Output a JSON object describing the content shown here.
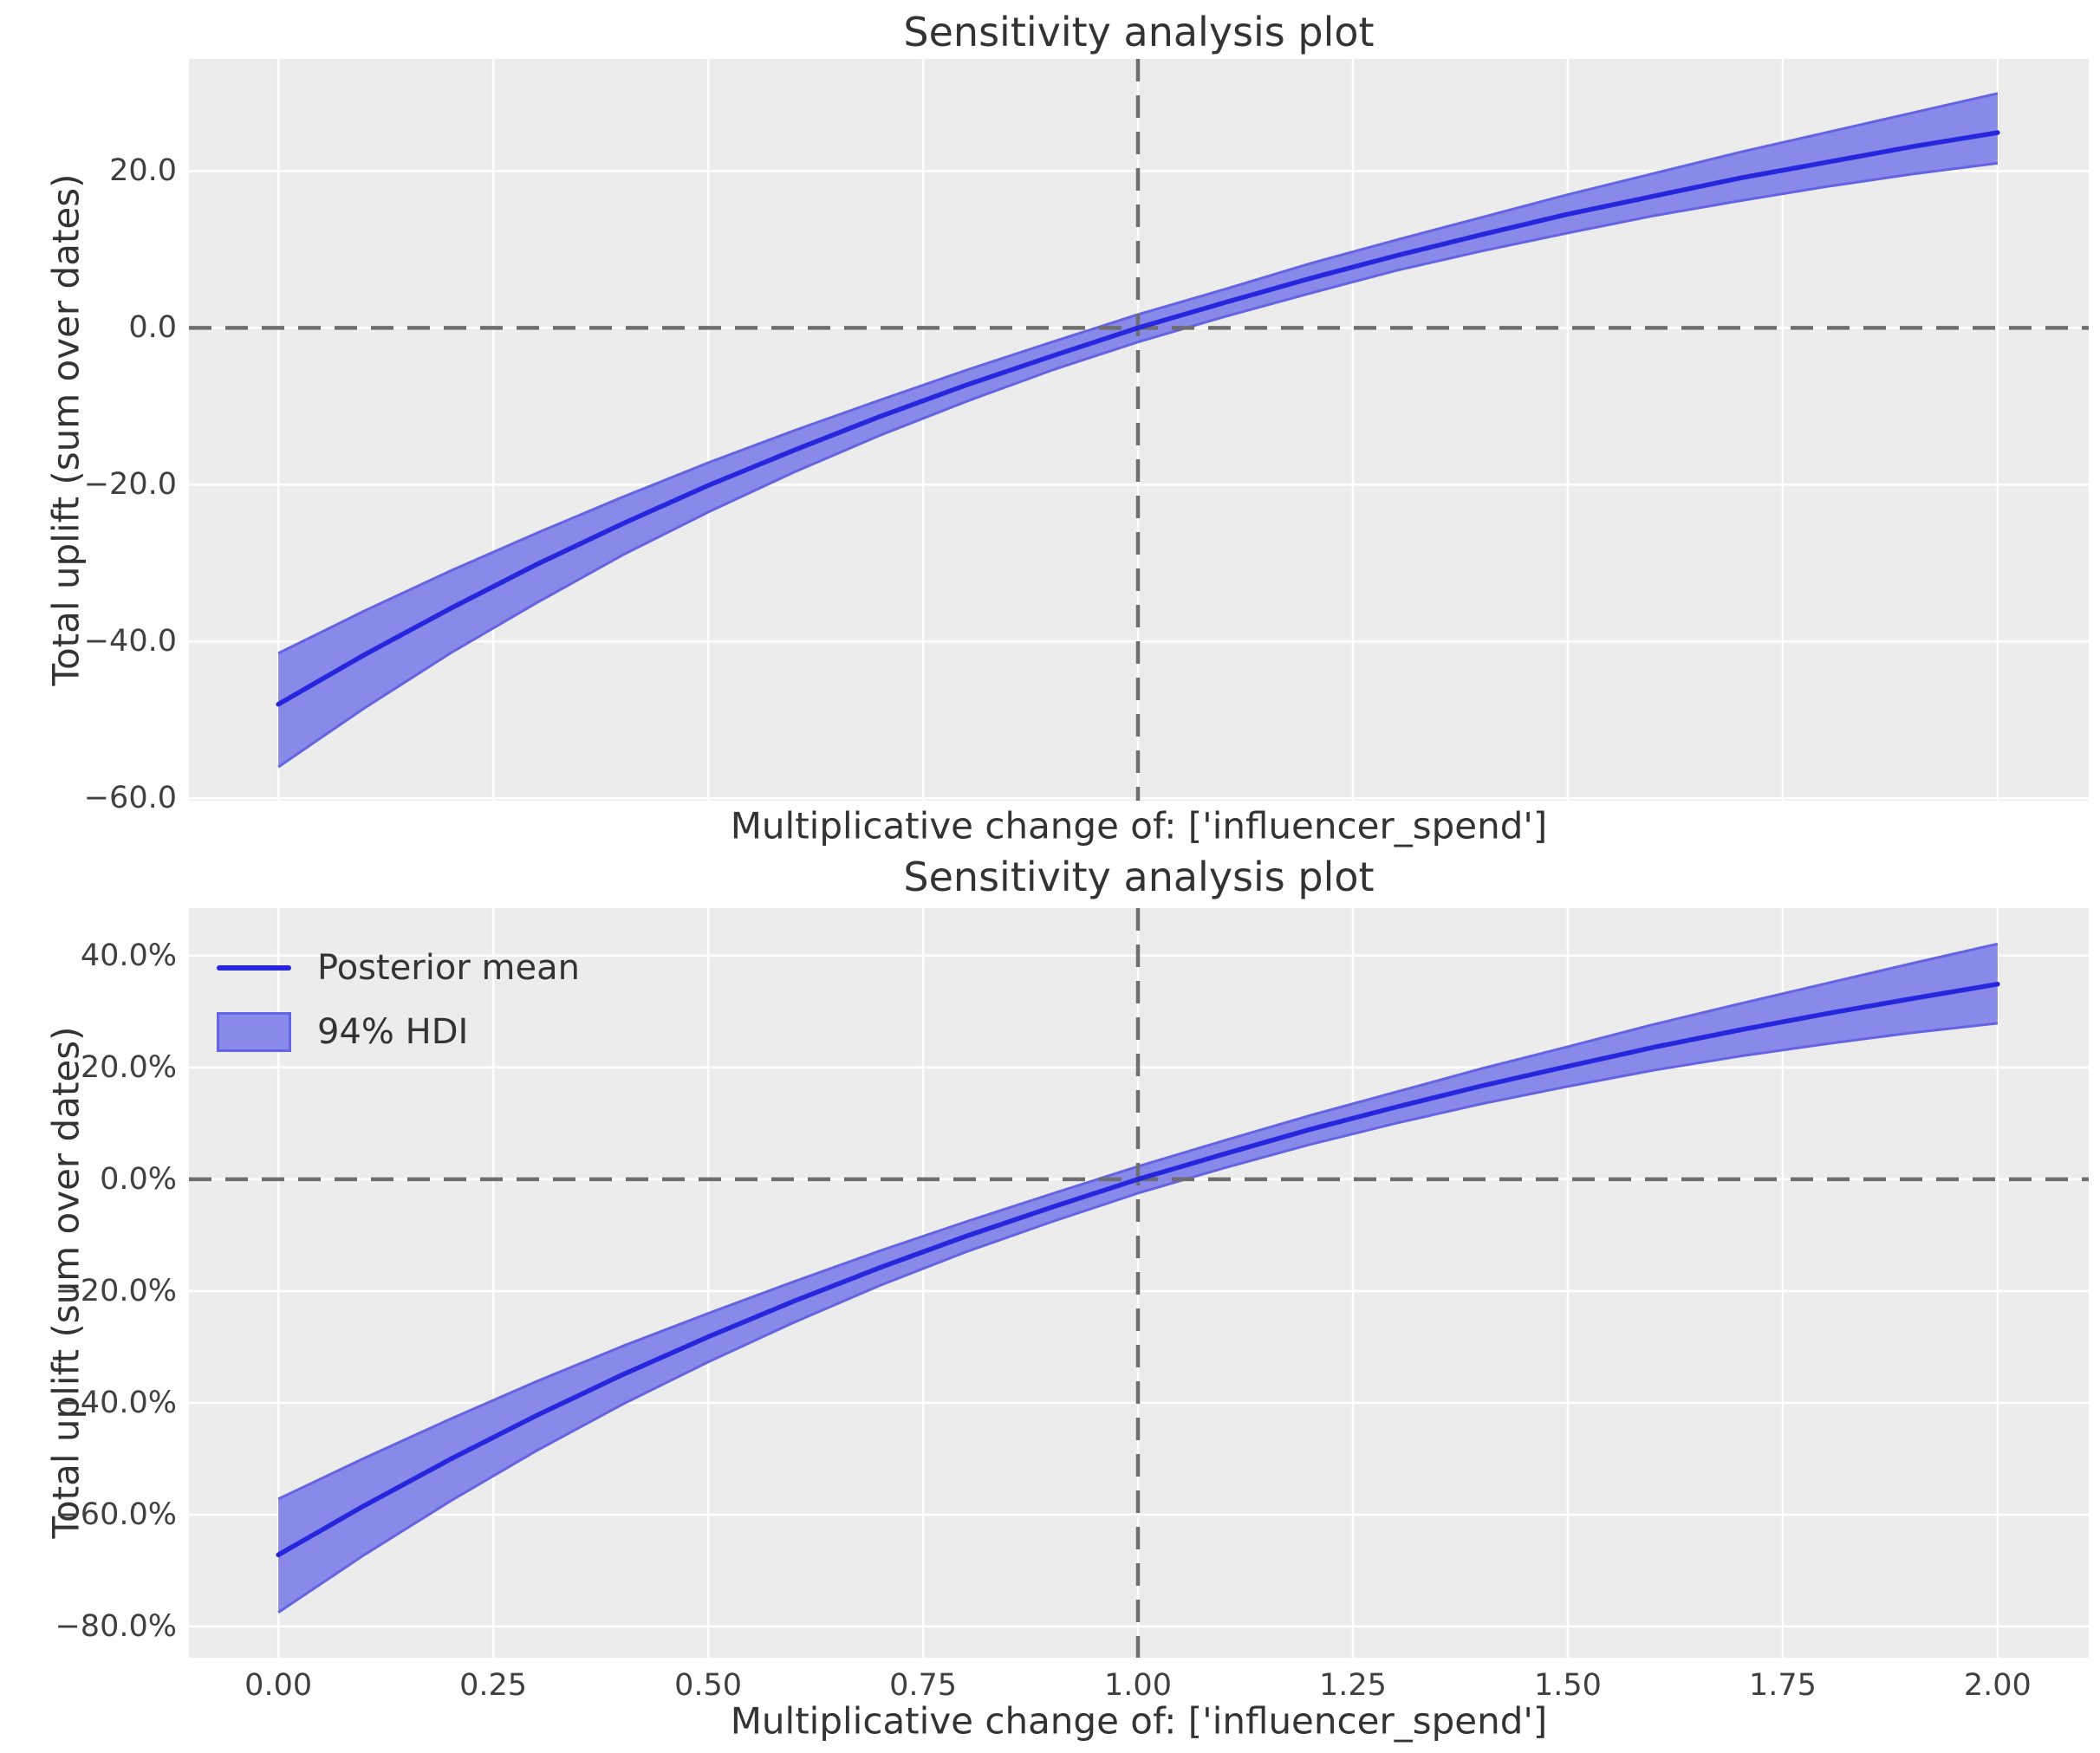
{
  "figure": {
    "background": "#ffffff",
    "axes_background": "#ececec",
    "grid_color": "#ffffff",
    "crosshair_color": "#6e6e6e",
    "line_color": "#2626dd",
    "band_fill": "#8989ea",
    "band_edge": "#6464e2",
    "text_color": "#333333",
    "tick_color": "#404040"
  },
  "chart_data": [
    {
      "type": "line",
      "title": "Sensitivity analysis plot",
      "xlabel": "Multiplicative change of: ['influencer_spend']",
      "ylabel": "Total uplift (sum over dates)",
      "grid": true,
      "legend": null,
      "xlim": [
        -0.104,
        2.106
      ],
      "ylim": [
        -60.3,
        34.3
      ],
      "reference_lines": {
        "x": 1.0,
        "y": 0.0
      },
      "xticks": {
        "values": [
          0,
          0.25,
          0.5,
          0.75,
          1.0,
          1.25,
          1.5,
          1.75,
          2.0
        ],
        "labels": []
      },
      "yticks": {
        "values": [
          20,
          0,
          -20,
          -40,
          -60
        ],
        "labels": [
          "20.0",
          "0.0",
          "−20.0",
          "−40.0",
          "−60.0"
        ]
      },
      "x": [
        0.0,
        0.1,
        0.2,
        0.3,
        0.4,
        0.5,
        0.6,
        0.7,
        0.8,
        0.9,
        1.0,
        1.1,
        1.2,
        1.3,
        1.4,
        1.5,
        1.6,
        1.7,
        1.8,
        1.9,
        2.0
      ],
      "series": [
        {
          "name": "Posterior mean",
          "values": [
            -48.0,
            -41.7,
            -35.8,
            -30.2,
            -25.0,
            -20.1,
            -15.6,
            -11.3,
            -7.3,
            -3.6,
            0.0,
            3.2,
            6.3,
            9.2,
            11.9,
            14.5,
            16.8,
            19.1,
            21.1,
            23.1,
            24.9
          ]
        },
        {
          "name": "94% HDI upper",
          "values": [
            -41.5,
            -36.1,
            -31.0,
            -26.2,
            -21.6,
            -17.2,
            -13.1,
            -9.2,
            -5.4,
            -1.8,
            1.7,
            4.9,
            8.2,
            11.2,
            14.1,
            17.0,
            19.7,
            22.4,
            24.9,
            27.4,
            29.9
          ]
        },
        {
          "name": "94% HDI lower",
          "values": [
            -56.0,
            -48.5,
            -41.5,
            -35.1,
            -29.0,
            -23.5,
            -18.4,
            -13.7,
            -9.4,
            -5.4,
            -1.8,
            1.4,
            4.4,
            7.3,
            9.8,
            12.1,
            14.3,
            16.2,
            18.0,
            19.6,
            21.0
          ]
        }
      ]
    },
    {
      "type": "line",
      "title": "Sensitivity analysis plot",
      "xlabel": "Multiplicative change of: ['influencer_spend']",
      "ylabel": "Total uplift (sum over dates)",
      "grid": true,
      "legend": {
        "position": "upper left",
        "entries": [
          {
            "label": "Posterior mean",
            "type": "line"
          },
          {
            "label": "94% HDI",
            "type": "patch"
          }
        ]
      },
      "xlim": [
        -0.104,
        2.106
      ],
      "ylim": [
        -85.6,
        48.5
      ],
      "reference_lines": {
        "x": 1.0,
        "y": 0.0
      },
      "xticks": {
        "values": [
          0,
          0.25,
          0.5,
          0.75,
          1.0,
          1.25,
          1.5,
          1.75,
          2.0
        ],
        "labels": [
          "0.00",
          "0.25",
          "0.50",
          "0.75",
          "1.00",
          "1.25",
          "1.50",
          "1.75",
          "2.00"
        ]
      },
      "yticks": {
        "values": [
          40,
          20,
          0,
          -20,
          -40,
          -60,
          -80
        ],
        "labels": [
          "40.0%",
          "20.0%",
          "0.0%",
          "−20.0%",
          "−40.0%",
          "−60.0%",
          "−80.0%"
        ]
      },
      "x": [
        0.0,
        0.1,
        0.2,
        0.3,
        0.4,
        0.5,
        0.6,
        0.7,
        0.8,
        0.9,
        1.0,
        1.1,
        1.2,
        1.3,
        1.4,
        1.5,
        1.6,
        1.7,
        1.8,
        1.9,
        2.0
      ],
      "series": [
        {
          "name": "Posterior mean",
          "values": [
            -67.2,
            -58.4,
            -50.1,
            -42.3,
            -35.0,
            -28.2,
            -21.8,
            -15.8,
            -10.2,
            -5.0,
            0.0,
            4.5,
            8.9,
            12.9,
            16.7,
            20.2,
            23.6,
            26.7,
            29.6,
            32.3,
            34.9
          ]
        },
        {
          "name": "94% HDI upper",
          "values": [
            -57.2,
            -49.9,
            -42.9,
            -36.2,
            -29.9,
            -24.0,
            -18.3,
            -12.8,
            -7.6,
            -2.6,
            2.3,
            6.9,
            11.4,
            15.6,
            19.8,
            23.7,
            27.7,
            31.4,
            35.0,
            38.6,
            42.1
          ]
        },
        {
          "name": "94% HDI lower",
          "values": [
            -77.5,
            -67.2,
            -57.6,
            -48.6,
            -40.3,
            -32.7,
            -25.6,
            -19.0,
            -13.0,
            -7.6,
            -2.5,
            2.0,
            6.2,
            10.0,
            13.5,
            16.6,
            19.5,
            22.0,
            24.2,
            26.2,
            27.9
          ]
        }
      ]
    }
  ]
}
